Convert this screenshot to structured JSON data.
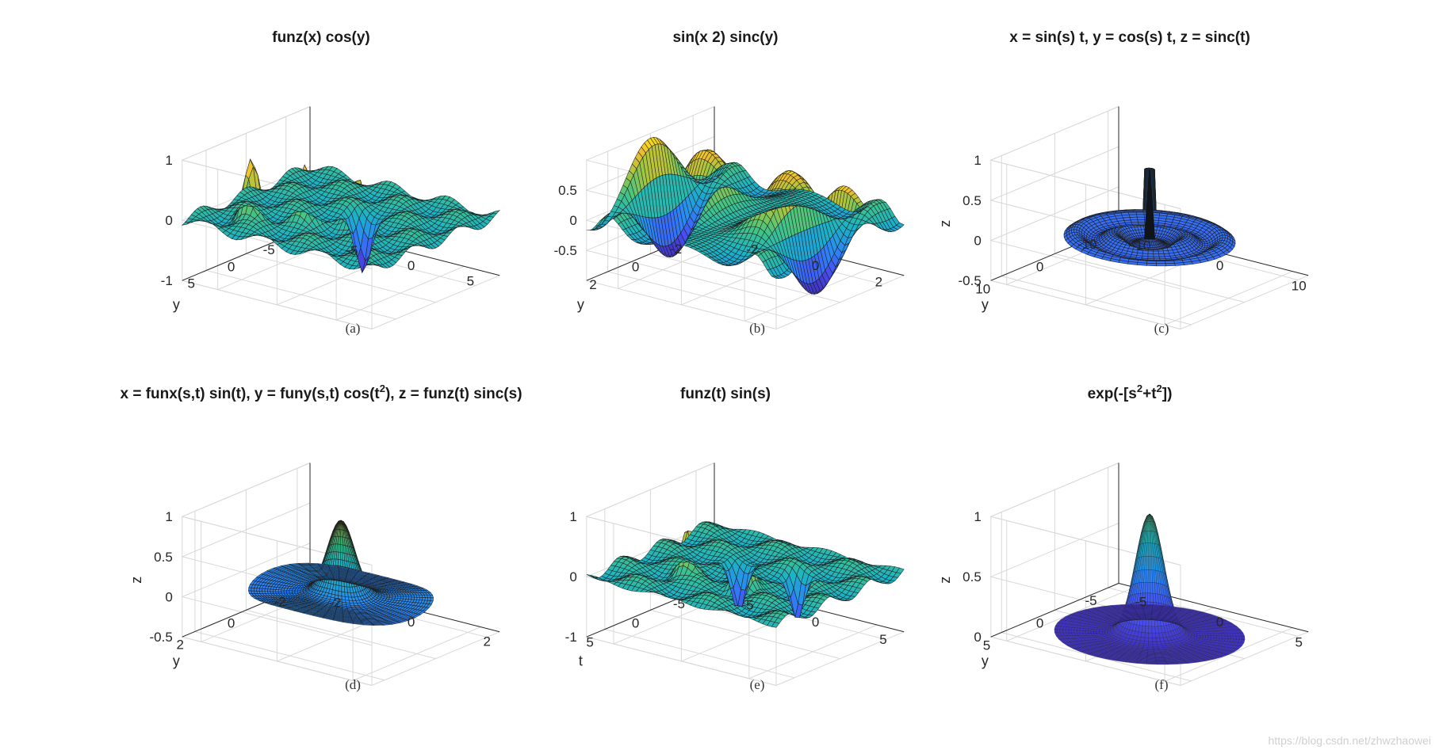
{
  "figure": {
    "watermark": "https://blog.csdn.net/zhwzhaowei",
    "colors": {
      "colormap_low": "#3e26a8",
      "colormap_mid": "#1fb9a0",
      "colormap_high": "#f9fb0e",
      "edge": "#1b1b1b",
      "axis_box": "#d8d8d8"
    }
  },
  "chart_data": [
    {
      "type": "surface",
      "function": "funz_cos",
      "title": "funz(x) cos(y)",
      "caption": "(a)",
      "xlabel": "",
      "ylabel": "y",
      "zlabel": "",
      "xlim": [
        -8,
        8
      ],
      "ylim": [
        -8,
        8
      ],
      "zlim": [
        -1,
        1
      ],
      "xticks": [
        "-5",
        "0",
        "5"
      ],
      "xtick_values": [
        -5,
        0,
        5
      ],
      "yticks": [
        "5",
        "0",
        "-5"
      ],
      "ytick_values": [
        5,
        0,
        -5
      ],
      "zticks": [
        "1",
        "0",
        "-1"
      ],
      "ztick_values": [
        1,
        0,
        -1
      ],
      "colormap": "parula",
      "edgecolor": "black",
      "grid": true
    },
    {
      "type": "surface",
      "function": "sin_sinc",
      "title": "sin(x 2) sinc(y)",
      "caption": "(b)",
      "xlabel": "",
      "ylabel": "y",
      "zlabel": "",
      "xlim": [
        -3,
        3
      ],
      "ylim": [
        -3,
        3
      ],
      "zlim": [
        -1,
        1
      ],
      "xticks": [
        "-2",
        "0",
        "2"
      ],
      "xtick_values": [
        -2,
        0,
        2
      ],
      "yticks": [
        "2",
        "0",
        "-2"
      ],
      "ytick_values": [
        2,
        0,
        -2
      ],
      "zticks": [
        "0.5",
        "0",
        "-0.5"
      ],
      "ztick_values": [
        0.5,
        0,
        -0.5
      ],
      "colormap": "parula",
      "edgecolor": "black",
      "grid": true
    },
    {
      "type": "surface",
      "function": "sombrero_spike",
      "title": "x = sin(s) t, y = cos(s) t, z = sinc(t)",
      "caption": "(c)",
      "xlabel": "",
      "ylabel": "y",
      "zlabel": "z",
      "xlim": [
        -12,
        12
      ],
      "ylim": [
        -12,
        12
      ],
      "zlim": [
        -0.5,
        1
      ],
      "xticks": [
        "-10",
        "0",
        "10"
      ],
      "xtick_values": [
        -10,
        0,
        10
      ],
      "yticks": [
        "10",
        "0",
        "-10"
      ],
      "ytick_values": [
        10,
        0,
        -10
      ],
      "zticks": [
        "1",
        "0.5",
        "0",
        "-0.5"
      ],
      "ztick_values": [
        1,
        0.5,
        0,
        -0.5
      ],
      "colormap": "parula",
      "edgecolor": "black",
      "grid": true
    },
    {
      "type": "surface",
      "function": "hat",
      "title": "x = funx(s,t) sin(t), y = funy(s,t) cos(t",
      "title_sup": "2",
      "title_rest": "), z = funz(t) sinc(s)",
      "caption": "(d)",
      "xlabel": "",
      "ylabel": "y",
      "zlabel": "z",
      "xlim": [
        -2.5,
        2.5
      ],
      "ylim": [
        -2.5,
        2.5
      ],
      "zlim": [
        -0.5,
        1
      ],
      "xticks": [
        "-2",
        "0",
        "2"
      ],
      "xtick_values": [
        -2,
        0,
        2
      ],
      "yticks": [
        "2",
        "0",
        "-2"
      ],
      "ytick_values": [
        2,
        0,
        -2
      ],
      "zticks": [
        "1",
        "0.5",
        "0",
        "-0.5"
      ],
      "ztick_values": [
        1,
        0.5,
        0,
        -0.5
      ],
      "colormap": "parula",
      "edgecolor": "black",
      "grid": true
    },
    {
      "type": "surface",
      "function": "funz_sin",
      "title": "funz(t) sin(s)",
      "caption": "(e)",
      "xlabel": "",
      "ylabel": "t",
      "zlabel": "",
      "xlim": [
        -7,
        7
      ],
      "ylim": [
        -7,
        7
      ],
      "zlim": [
        -1,
        1
      ],
      "xticks": [
        "-5",
        "0",
        "5"
      ],
      "xtick_values": [
        -5,
        0,
        5
      ],
      "yticks": [
        "5",
        "0",
        "-5"
      ],
      "ytick_values": [
        5,
        0,
        -5
      ],
      "zticks": [
        "1",
        "0",
        "-1"
      ],
      "ztick_values": [
        1,
        0,
        -1
      ],
      "colormap": "parula",
      "edgecolor": "black",
      "grid": true
    },
    {
      "type": "surface",
      "function": "gaussian",
      "title": "exp(-[s",
      "title_sup": "2",
      "title_mid": "+t",
      "title_sup2": "2",
      "title_rest": "])",
      "caption": "(f)",
      "xlabel": "",
      "ylabel": "y",
      "zlabel": "z",
      "xlim": [
        -6,
        6
      ],
      "ylim": [
        -6,
        6
      ],
      "zlim": [
        0,
        1
      ],
      "xticks": [
        "-5",
        "0",
        "5"
      ],
      "xtick_values": [
        -5,
        0,
        5
      ],
      "yticks": [
        "5",
        "0",
        "-5"
      ],
      "ytick_values": [
        5,
        0,
        -5
      ],
      "zticks": [
        "1",
        "0.5",
        "0"
      ],
      "ztick_values": [
        1,
        0.5,
        0
      ],
      "colormap": "parula",
      "edgecolor": "black",
      "grid": true
    }
  ]
}
